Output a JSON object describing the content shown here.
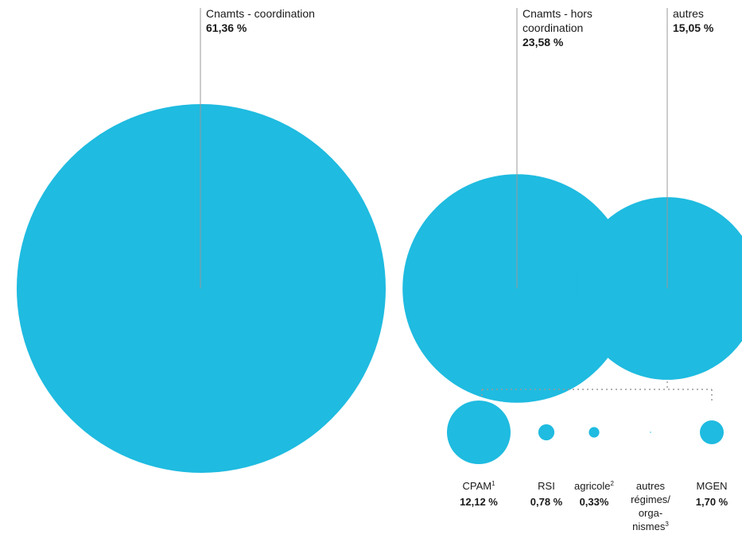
{
  "chart_data": {
    "type": "bubble",
    "title": "",
    "colors": {
      "bubble": "#1fbbe0",
      "leader": "#9a9a9a",
      "text": "#1a1a1a"
    },
    "main": [
      {
        "id": "coord",
        "name": [
          "Cnamts - coordination"
        ],
        "value": 61.36,
        "value_label": "61,36 %"
      },
      {
        "id": "hors",
        "name": [
          "Cnamts - hors",
          "coordination"
        ],
        "value": 23.58,
        "value_label": "23,58 %"
      },
      {
        "id": "autres",
        "name": [
          "autres"
        ],
        "value": 15.05,
        "value_label": "15,05 %"
      }
    ],
    "breakdown_of": "autres",
    "breakdown": [
      {
        "id": "cpam",
        "name": [
          "CPAM"
        ],
        "sup": "1",
        "value": 12.12,
        "value_label": "12,12 %"
      },
      {
        "id": "rsi",
        "name": [
          "RSI"
        ],
        "sup": "",
        "value": 0.78,
        "value_label": "0,78 %"
      },
      {
        "id": "agricole",
        "name": [
          "agricole"
        ],
        "sup": "2",
        "value": 0.33,
        "value_label": "0,33%"
      },
      {
        "id": "autres-regimes",
        "name": [
          "autres",
          "régimes/",
          "orga-",
          "nismes"
        ],
        "sup": "3",
        "value": 0.12,
        "value_label": ""
      },
      {
        "id": "mgen",
        "name": [
          "MGEN"
        ],
        "sup": "",
        "value": 1.7,
        "value_label": "1,70 %"
      }
    ]
  }
}
